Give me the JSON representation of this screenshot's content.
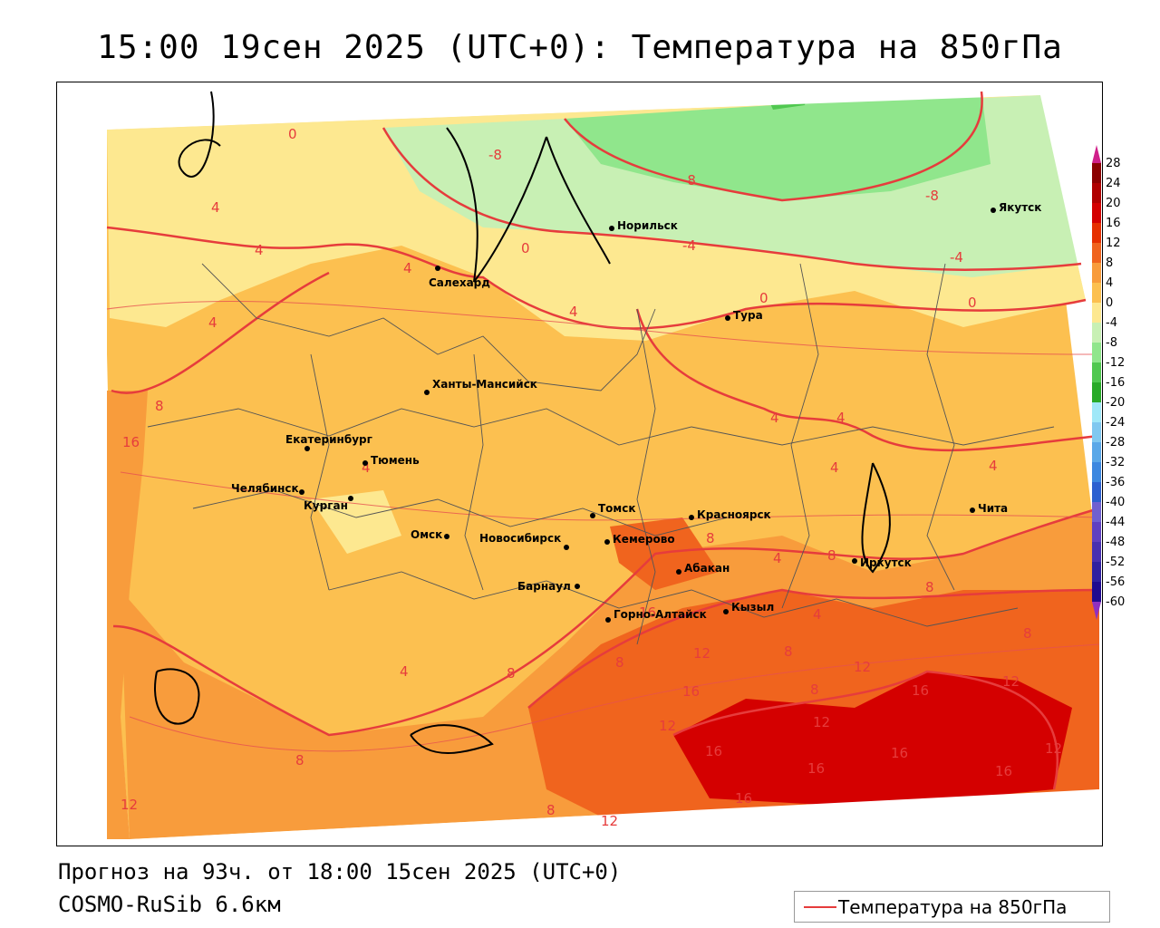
{
  "title": "15:00 19сен 2025 (UTC+0): Температура на 850гПа",
  "footer": {
    "forecast": "Прогноз на 93ч. от 18:00 15сен 2025 (UTC+0)",
    "model": "COSMO-RuSib 6.6км"
  },
  "legend": {
    "label": "Температура на 850гПа",
    "color": "#e63c3c"
  },
  "colorbar": {
    "ticks": [
      "28",
      "24",
      "20",
      "16",
      "12",
      "8",
      "4",
      "0",
      "-4",
      "-8",
      "-12",
      "-16",
      "-20",
      "-24",
      "-28",
      "-32",
      "-36",
      "-40",
      "-44",
      "-48",
      "-52",
      "-56",
      "-60"
    ],
    "colors": [
      "#8b0000",
      "#b00000",
      "#d40000",
      "#e63000",
      "#f0641e",
      "#f89c3c",
      "#fcc050",
      "#fde890",
      "#c8f0b4",
      "#90e68c",
      "#50c850",
      "#28aa28",
      "#a0e8f8",
      "#80c8f0",
      "#5aa8e8",
      "#3c88e0",
      "#2c60d0",
      "#7060d0",
      "#6040c0",
      "#4830b0",
      "#3020a0",
      "#200a90"
    ]
  },
  "cities": [
    {
      "name": "Норильск"
    },
    {
      "name": "Якутск"
    },
    {
      "name": "Салехард"
    },
    {
      "name": "Тура"
    },
    {
      "name": "Ханты-Мансийск"
    },
    {
      "name": "Екатеринбург"
    },
    {
      "name": "Тюмень"
    },
    {
      "name": "Челябинск"
    },
    {
      "name": "Курган"
    },
    {
      "name": "Омск"
    },
    {
      "name": "Томск"
    },
    {
      "name": "Красноярск"
    },
    {
      "name": "Новосибирск"
    },
    {
      "name": "Кемерово"
    },
    {
      "name": "Абакан"
    },
    {
      "name": "Барнаул"
    },
    {
      "name": "Иркутск"
    },
    {
      "name": "Чита"
    },
    {
      "name": "Кызыл"
    },
    {
      "name": "Горно-Алтайск"
    }
  ],
  "contour_labels": [
    "0",
    "-8",
    "-8",
    "-8",
    "4",
    "4",
    "4",
    "4",
    "4",
    "0",
    "-4",
    "-4",
    "0",
    "0",
    "4",
    "4",
    "4",
    "4",
    "4",
    "4",
    "8",
    "8",
    "8",
    "8",
    "8",
    "8",
    "8",
    "8",
    "8",
    "8",
    "8",
    "12",
    "12",
    "12",
    "12",
    "12",
    "12",
    "12",
    "12",
    "16",
    "16",
    "16",
    "16",
    "16",
    "16",
    "16",
    "16",
    "16",
    "4",
    "4"
  ]
}
